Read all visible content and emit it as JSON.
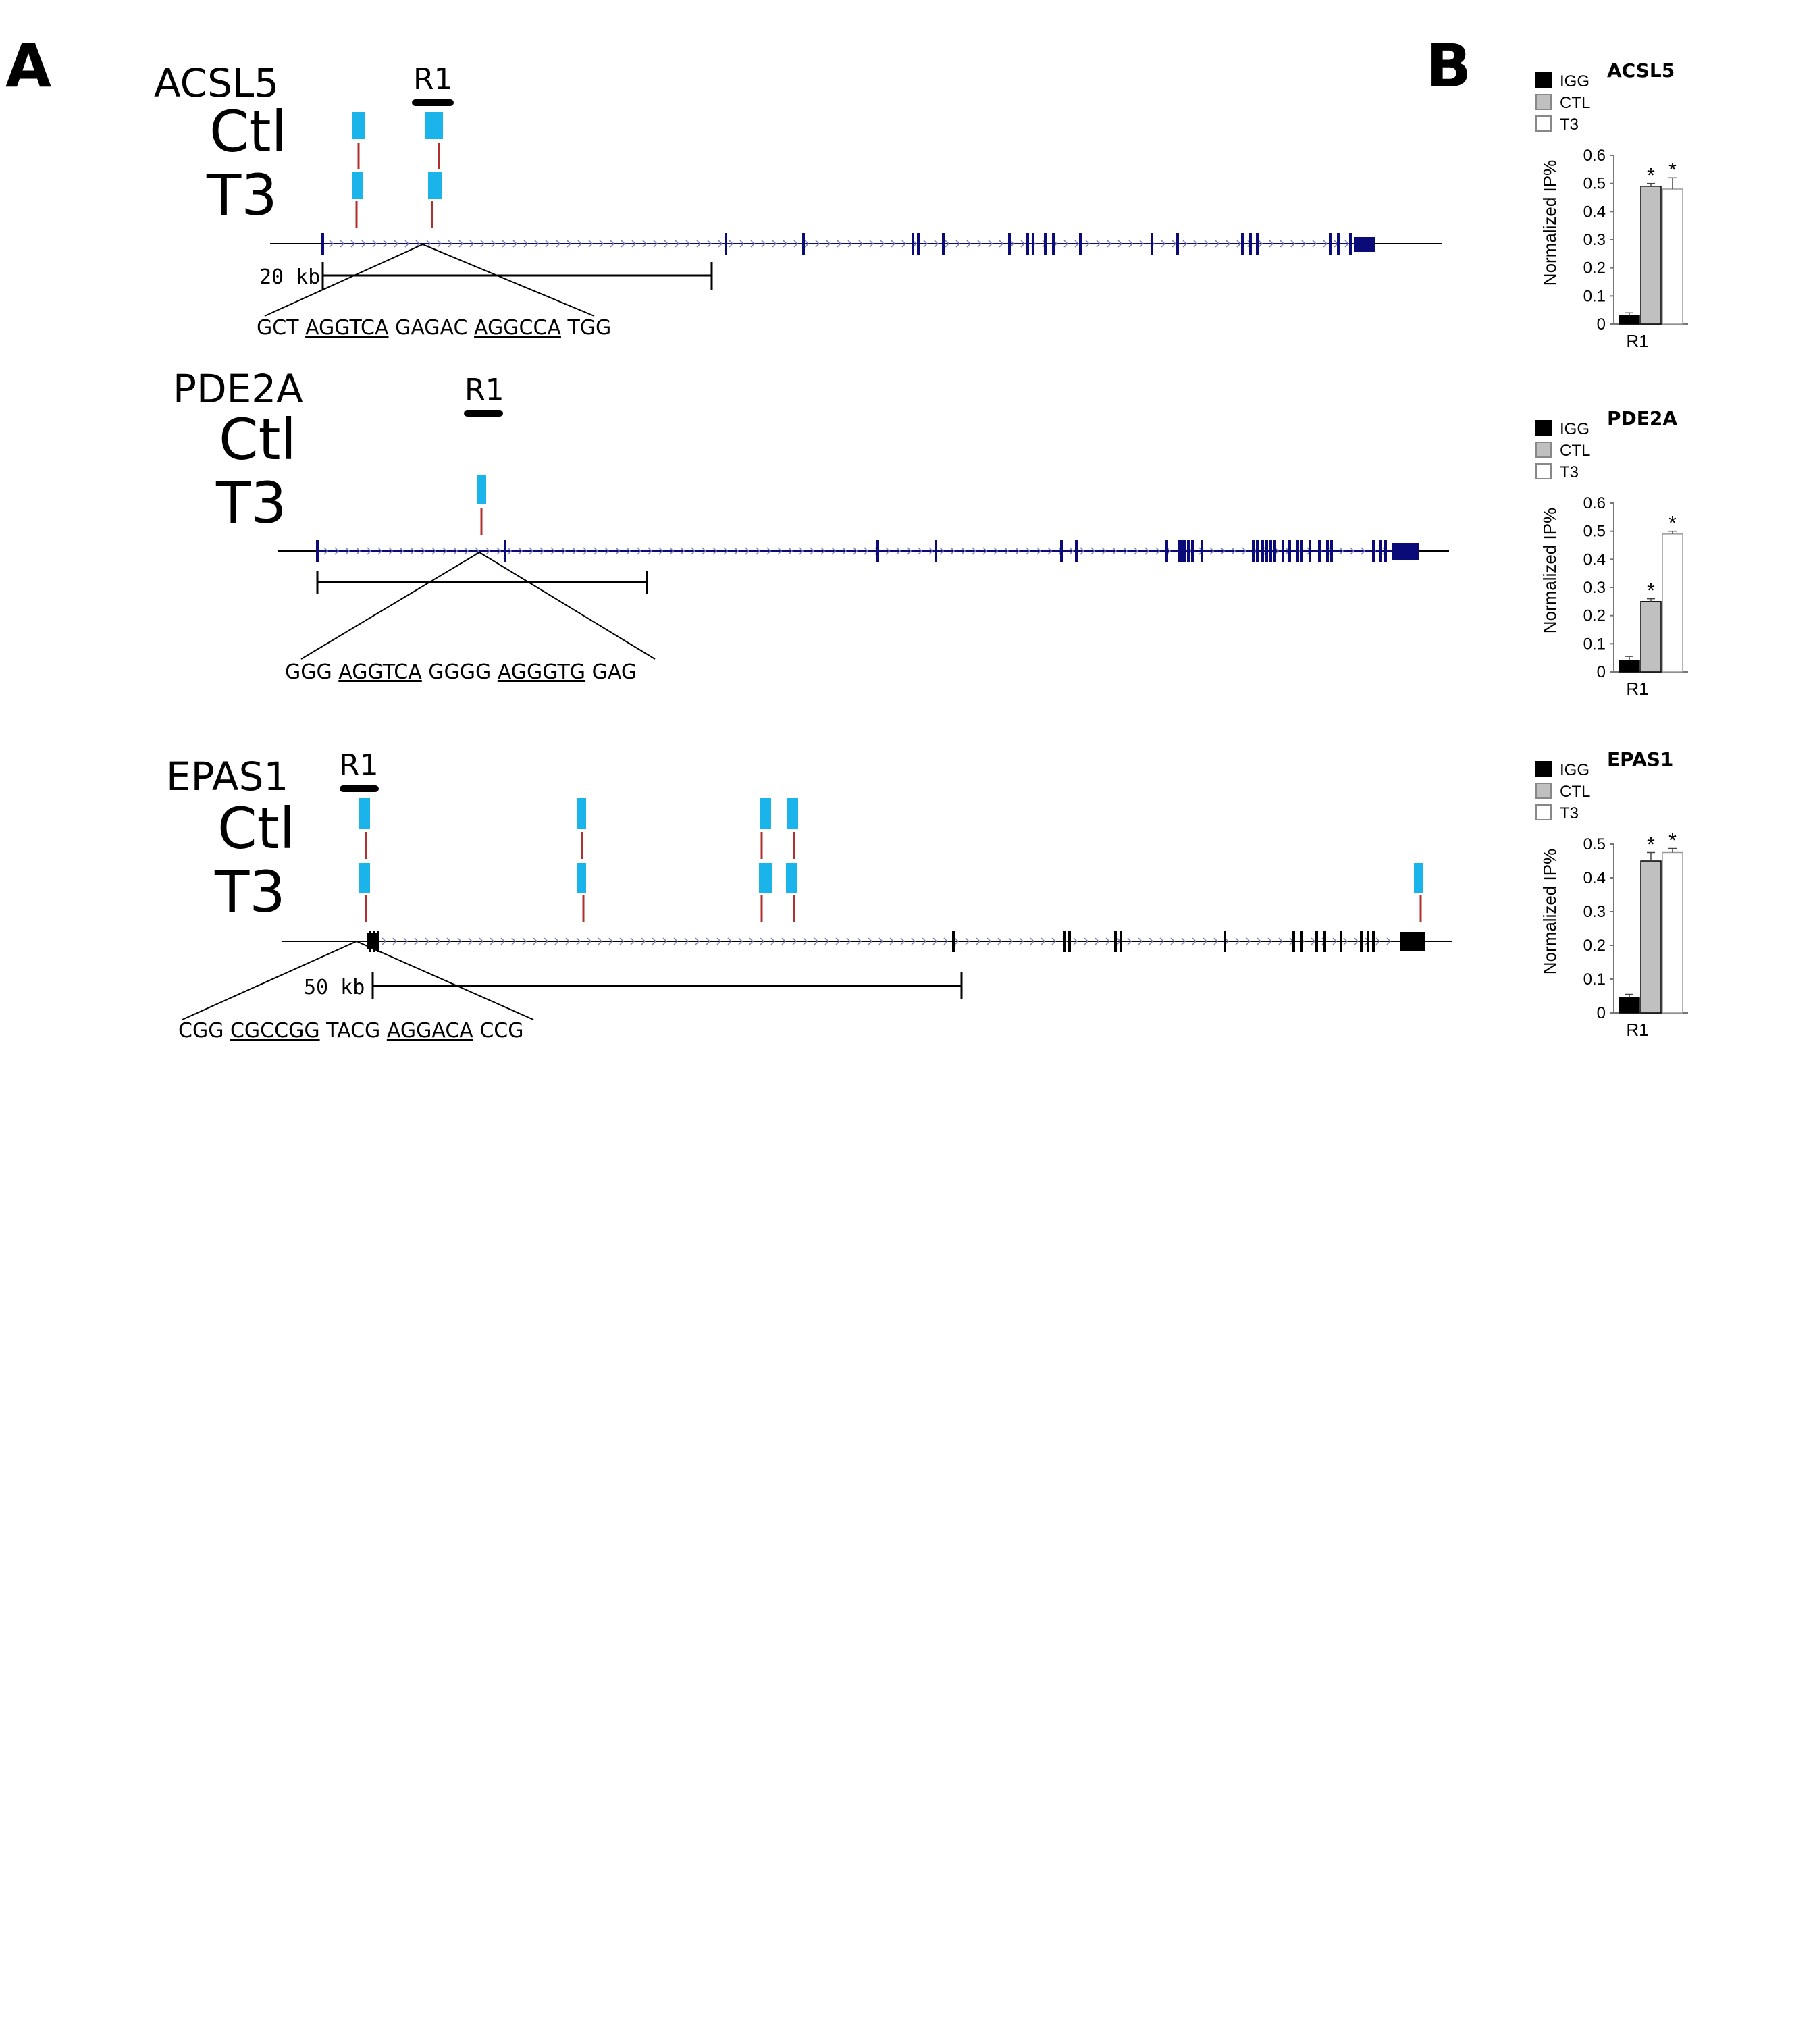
{
  "panelA": {
    "label": "A",
    "genes": [
      {
        "id": "acsl5",
        "name": "ACSL5",
        "region_label": "R1",
        "ctl_label": "Ctl",
        "t3_label": "T3",
        "scale_label": "20 kb",
        "sequence": [
          {
            "text": "GCT ",
            "underline": false
          },
          {
            "text": "AGGTCA",
            "underline": true
          },
          {
            "text": " GAGAC ",
            "underline": false
          },
          {
            "text": "AGGCCA",
            "underline": true
          },
          {
            "text": " TGG",
            "underline": false
          }
        ],
        "color": "#0a0a78"
      },
      {
        "id": "pde2a",
        "name": "PDE2A",
        "region_label": "R1",
        "ctl_label": "Ctl",
        "t3_label": "T3",
        "scale_label": "",
        "sequence": [
          {
            "text": "GGG ",
            "underline": false
          },
          {
            "text": "AGGTCA",
            "underline": true
          },
          {
            "text": " GGGG ",
            "underline": false
          },
          {
            "text": "AGGGTG",
            "underline": true
          },
          {
            "text": " GAG",
            "underline": false
          }
        ],
        "color": "#0a0a78"
      },
      {
        "id": "epas1",
        "name": "EPAS1",
        "region_label": "R1",
        "ctl_label": "Ctl",
        "t3_label": "T3",
        "scale_label": "50 kb",
        "sequence": [
          {
            "text": "CGG ",
            "underline": false
          },
          {
            "text": "CGCCGG",
            "underline": true
          },
          {
            "text": " TACG ",
            "underline": false
          },
          {
            "text": "AGGACA",
            "underline": true
          },
          {
            "text": " CCG",
            "underline": false
          }
        ],
        "color": "#000000"
      }
    ],
    "peak_color": "#1ab4ea",
    "stem_color": "#b03030"
  },
  "panelB": {
    "label": "B",
    "legend": [
      "IGG",
      "CTL",
      "T3"
    ],
    "colors": {
      "IGG": "#000000",
      "CTL": "#c0c0c0",
      "T3": "#ffffff"
    },
    "ylabel": "Normalized IP%",
    "chart_data": [
      {
        "type": "bar",
        "title": "ACSL5",
        "categories": [
          "R1"
        ],
        "series": [
          {
            "name": "IGG",
            "values": [
              0.03
            ],
            "error": [
              0.01
            ],
            "significant": false
          },
          {
            "name": "CTL",
            "values": [
              0.49
            ],
            "error": [
              0.01
            ],
            "significant": true
          },
          {
            "name": "T3",
            "values": [
              0.48
            ],
            "error": [
              0.04
            ],
            "significant": true
          }
        ],
        "ylabel": "Normalized IP%",
        "ylim": [
          0,
          0.6
        ],
        "yticks": [
          "0",
          "0.1",
          "0.2",
          "0.3",
          "0.4",
          "0.5",
          "0.6"
        ],
        "significance_marker": "*"
      },
      {
        "type": "bar",
        "title": "PDE2A",
        "categories": [
          "R1"
        ],
        "series": [
          {
            "name": "IGG",
            "values": [
              0.04
            ],
            "error": [
              0.015
            ],
            "significant": false
          },
          {
            "name": "CTL",
            "values": [
              0.25
            ],
            "error": [
              0.01
            ],
            "significant": true
          },
          {
            "name": "T3",
            "values": [
              0.49
            ],
            "error": [
              0.01
            ],
            "significant": true
          }
        ],
        "ylabel": "Normalized IP%",
        "ylim": [
          0,
          0.6
        ],
        "yticks": [
          "0",
          "0.1",
          "0.2",
          "0.3",
          "0.4",
          "0.5",
          "0.6"
        ],
        "significance_marker": "*"
      },
      {
        "type": "bar",
        "title": "EPAS1",
        "categories": [
          "R1"
        ],
        "series": [
          {
            "name": "IGG",
            "values": [
              0.045
            ],
            "error": [
              0.01
            ],
            "significant": false
          },
          {
            "name": "CTL",
            "values": [
              0.45
            ],
            "error": [
              0.025
            ],
            "significant": true
          },
          {
            "name": "T3",
            "values": [
              0.475
            ],
            "error": [
              0.012
            ],
            "significant": true
          }
        ],
        "ylabel": "Normalized IP%",
        "ylim": [
          0,
          0.5
        ],
        "yticks": [
          "0",
          "0.1",
          "0.2",
          "0.3",
          "0.4",
          "0.5"
        ],
        "significance_marker": "*"
      }
    ]
  }
}
